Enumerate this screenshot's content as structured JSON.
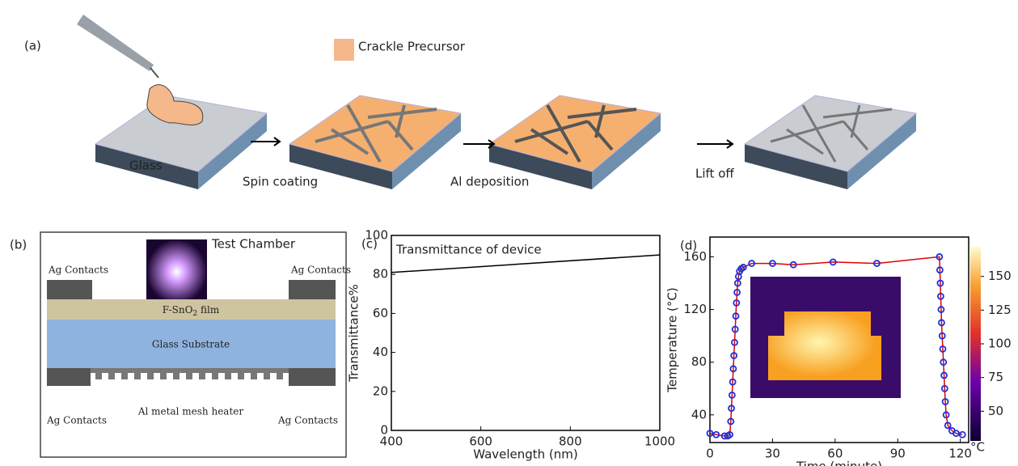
{
  "panel_a": {
    "label": "(a)",
    "legend": "Crackle Precursor",
    "steps": [
      "Glass",
      "Spin coating",
      "Al deposition",
      "Lift off"
    ]
  },
  "panel_b": {
    "label": "(b)",
    "test_chamber": "Test Chamber",
    "top_contacts": [
      "Ag Contacts",
      "Ag Contacts"
    ],
    "film": {
      "text": "F-SnO",
      "subscript": "2",
      "suffix": " film"
    },
    "substrate": "Glass Substrate",
    "bottom_contacts": [
      "Ag Contacts",
      "Ag Contacts"
    ],
    "heater": "Al metal mesh heater"
  },
  "chart_data": [
    {
      "type": "line",
      "label": "(c)",
      "title": "Transmittance of device",
      "x": [
        400,
        1000
      ],
      "values": [
        81,
        90
      ],
      "color": "#000000",
      "xlim": [
        400,
        1000
      ],
      "ylim": [
        0,
        100
      ],
      "xticks": [
        400,
        600,
        800,
        1000
      ],
      "yticks": [
        0,
        20,
        40,
        60,
        80,
        100
      ],
      "xlabel": "Wavelength (nm)",
      "ylabel": "Transmittance%"
    },
    {
      "type": "line",
      "markers": true,
      "label": "(d)",
      "x": [
        0,
        3,
        7,
        8.5,
        9.5,
        10,
        10.3,
        10.6,
        10.9,
        11.2,
        11.5,
        11.8,
        12.1,
        12.4,
        12.7,
        13,
        13.3,
        13.7,
        14.2,
        15,
        16,
        20,
        30,
        40,
        59,
        80,
        110,
        110.2,
        110.4,
        110.6,
        110.8,
        111,
        111.3,
        111.6,
        111.9,
        112.2,
        112.5,
        112.8,
        113.2,
        114,
        116,
        118,
        121
      ],
      "values": [
        26,
        25,
        24,
        24,
        25,
        35,
        45,
        55,
        65,
        75,
        85,
        95,
        105,
        115,
        125,
        133,
        140,
        145,
        149,
        151,
        152,
        155,
        155,
        154,
        156,
        155,
        160,
        150,
        140,
        130,
        120,
        110,
        100,
        90,
        80,
        70,
        60,
        50,
        40,
        32,
        28,
        26,
        25
      ],
      "color": "#e00000",
      "marker_color": "#1f2fd8",
      "xlim": [
        0,
        124
      ],
      "ylim": [
        19,
        175
      ],
      "xticks": [
        0,
        30,
        60,
        90,
        120
      ],
      "yticks": [
        40,
        80,
        120,
        160
      ],
      "xlabel": "Time (minute)",
      "ylabel": "Temperature (°C)",
      "colorbar": {
        "lim": [
          28,
          172
        ],
        "ticks": [
          50,
          75,
          100,
          125,
          150
        ],
        "label": "°C"
      }
    }
  ]
}
